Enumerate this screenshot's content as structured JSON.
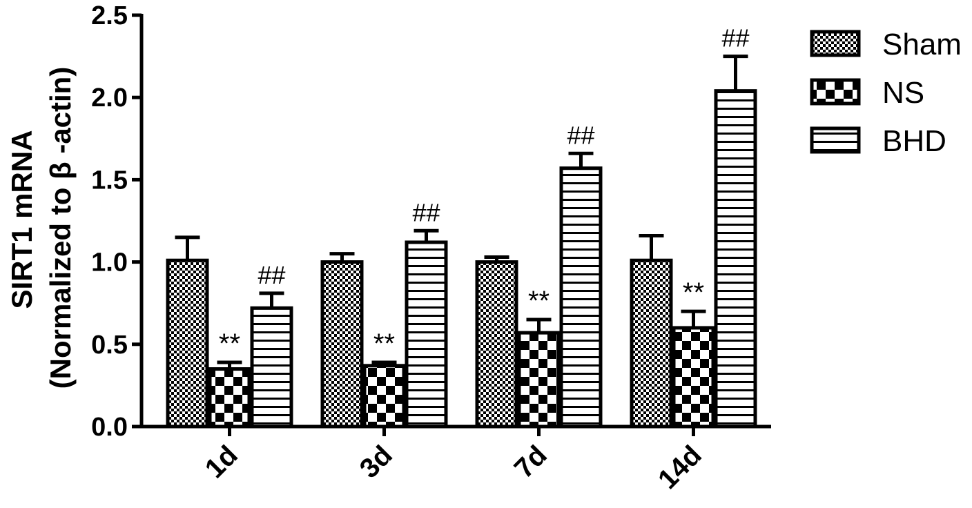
{
  "chart_data": {
    "type": "bar",
    "ylabel_line1": "SIRT1 mRNA",
    "ylabel_line2": "(Normalized to  β -actin)",
    "xlabel": "",
    "ylim": [
      0,
      2.5
    ],
    "yticks": [
      "0.0",
      "0.5",
      "1.0",
      "1.5",
      "2.0",
      "2.5"
    ],
    "categories": [
      "1d",
      "3d",
      "7d",
      "14d"
    ],
    "legend_position": "top-right",
    "series": [
      {
        "name": "Sham",
        "pattern": "checker-fine",
        "values": [
          1.01,
          1.0,
          1.0,
          1.01
        ],
        "errors": [
          0.14,
          0.05,
          0.03,
          0.15
        ],
        "annotations": [
          "",
          "",
          "",
          ""
        ]
      },
      {
        "name": "NS",
        "pattern": "checker-coarse",
        "values": [
          0.35,
          0.37,
          0.57,
          0.6
        ],
        "errors": [
          0.04,
          0.02,
          0.08,
          0.1
        ],
        "annotations": [
          "**",
          "**",
          "**",
          "**"
        ]
      },
      {
        "name": "BHD",
        "pattern": "horizontal-lines",
        "values": [
          0.72,
          1.12,
          1.57,
          2.04
        ],
        "errors": [
          0.09,
          0.07,
          0.09,
          0.21
        ],
        "annotations": [
          "##",
          "##",
          "##",
          "##"
        ]
      }
    ],
    "colors": {
      "ink": "#000000",
      "background": "#ffffff"
    }
  }
}
